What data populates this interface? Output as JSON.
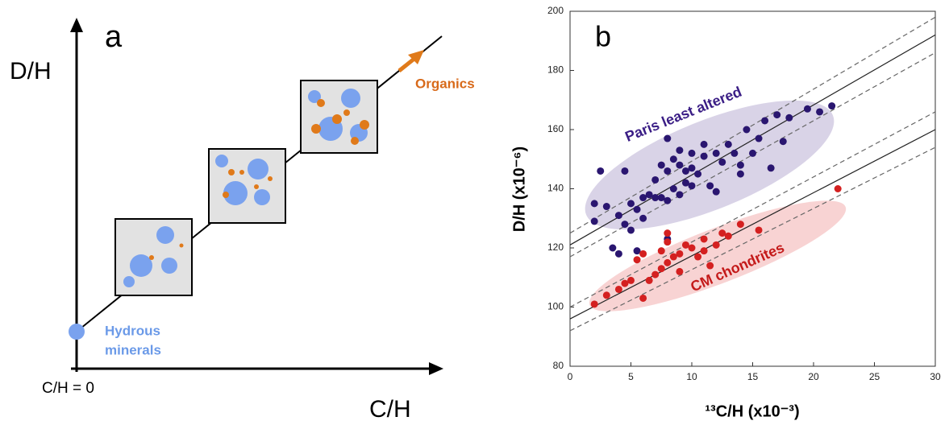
{
  "diagram": {
    "panel_label": "a",
    "y_axis_label": "D/H",
    "x_axis_label": "C/H",
    "origin_label": "C/H = 0",
    "organics_label": "Organics",
    "hydrous_label_line1": "Hydrous",
    "hydrous_label_line2": "minerals"
  },
  "chart_data": {
    "type": "scatter",
    "panel_label": "b",
    "x_label": "¹³C/H (x10⁻³)",
    "y_label": "D/H (x10⁻⁶)",
    "annotations": [
      "Paris least altered",
      "CM chondrites"
    ],
    "xlim": [
      0,
      30
    ],
    "ylim": [
      80,
      200
    ],
    "xticks": [
      0,
      5,
      10,
      15,
      20,
      25,
      30
    ],
    "yticks": [
      80,
      100,
      120,
      140,
      160,
      180,
      200
    ],
    "series": [
      {
        "name": "Paris least altered",
        "color": "#2a1670",
        "x": [
          2,
          2,
          2.5,
          3,
          3.5,
          4,
          4.5,
          4.5,
          5,
          5,
          5.5,
          5.5,
          6,
          6,
          6.5,
          7,
          7,
          7.5,
          7.5,
          8,
          8,
          8,
          8.5,
          8.5,
          9,
          9,
          9,
          9.5,
          9.5,
          10,
          10,
          10,
          10.5,
          11,
          11,
          11.5,
          12,
          12,
          12.5,
          13,
          13.5,
          14,
          14,
          14.5,
          15,
          15.5,
          16,
          16.5,
          17,
          17.5,
          18,
          19.5,
          20.5,
          21.5,
          8,
          4
        ],
        "values": [
          135,
          129,
          146,
          134,
          120,
          131,
          128,
          146,
          135,
          126,
          133,
          119,
          137,
          130,
          138,
          137,
          143,
          137,
          148,
          136,
          146,
          157,
          140,
          150,
          138,
          148,
          153,
          142,
          146,
          152,
          147,
          141,
          145,
          151,
          155,
          141,
          152,
          139,
          149,
          155,
          152,
          148,
          145,
          160,
          152,
          157,
          163,
          147,
          165,
          156,
          164,
          167,
          166,
          168,
          123,
          118
        ]
      },
      {
        "name": "CM chondrites",
        "color": "#d42020",
        "x": [
          2,
          3,
          4,
          4.5,
          5,
          5.5,
          6,
          6,
          6.5,
          7,
          7.5,
          7.5,
          8,
          8,
          8,
          8.5,
          9,
          9,
          9.5,
          10,
          10.5,
          11,
          11,
          11.5,
          12,
          12.5,
          13,
          14,
          15.5,
          22
        ],
        "values": [
          101,
          104,
          106,
          108,
          109,
          116,
          103,
          118,
          109,
          111,
          113,
          119,
          115,
          122,
          125,
          117,
          112,
          118,
          121,
          120,
          117,
          119,
          123,
          114,
          121,
          125,
          124,
          128,
          126,
          140
        ]
      }
    ],
    "fit_lines": [
      {
        "x": [
          0,
          30
        ],
        "values": [
          121,
          192
        ],
        "style": "solid"
      },
      {
        "x": [
          0,
          30
        ],
        "values": [
          125,
          198
        ],
        "style": "dashed"
      },
      {
        "x": [
          0,
          30
        ],
        "values": [
          117,
          186
        ],
        "style": "dashed"
      },
      {
        "x": [
          0,
          30
        ],
        "values": [
          96,
          160
        ],
        "style": "solid"
      },
      {
        "x": [
          0,
          30
        ],
        "values": [
          100,
          166
        ],
        "style": "dashed"
      },
      {
        "x": [
          0,
          30
        ],
        "values": [
          92,
          154
        ],
        "style": "dashed"
      }
    ]
  }
}
